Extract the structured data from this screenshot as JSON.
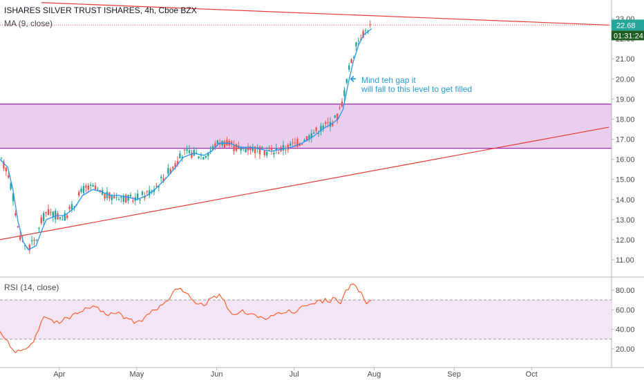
{
  "header": {
    "title": "ISHARES SILVER TRUST ISHARES, 4h, Cboe BZX",
    "ma_label": "MA (9, close)"
  },
  "rsi_panel": {
    "label": "RSI (14, close)"
  },
  "price_tags": {
    "last_price": "22.68",
    "countdown": "01:31:24"
  },
  "annotation": {
    "line1": "Mind teh gap it",
    "line2": "will fall to this level to get filled"
  },
  "colors": {
    "up": "#26a69a",
    "down": "#ef5350",
    "ma": "#2196f3",
    "trendline": "#e53935",
    "zone_fill": "#e1bee7",
    "zone_border": "#9c27b0",
    "rsi_line": "#ff5722",
    "rsi_band": "#f3e5f5",
    "price_tag_bg": "#26a69a",
    "countdown_bg": "#1b5e20"
  },
  "chart_data": [
    {
      "type": "candlestick",
      "title": "ISHARES SILVER TRUST ISHARES, 4h, Cboe BZX",
      "y_axis_ticks": [
        "11.00",
        "12.00",
        "13.00",
        "14.00",
        "15.00",
        "16.00",
        "17.00",
        "18.00",
        "19.00",
        "20.00",
        "21.00",
        "22.00",
        "23.00"
      ],
      "x_axis_ticks": [
        "Apr",
        "May",
        "Jun",
        "Jul",
        "Aug",
        "Sep",
        "Oct"
      ],
      "ylim": [
        10.5,
        23.5
      ],
      "close_path": [
        [
          "2020-03-09",
          16.0
        ],
        [
          "2020-03-12",
          15.4
        ],
        [
          "2020-03-14",
          14.2
        ],
        [
          "2020-03-16",
          12.5
        ],
        [
          "2020-03-18",
          11.8
        ],
        [
          "2020-03-20",
          11.6
        ],
        [
          "2020-03-23",
          12.0
        ],
        [
          "2020-03-25",
          12.9
        ],
        [
          "2020-03-27",
          13.4
        ],
        [
          "2020-03-31",
          13.2
        ],
        [
          "2020-04-03",
          13.1
        ],
        [
          "2020-04-07",
          13.8
        ],
        [
          "2020-04-10",
          14.5
        ],
        [
          "2020-04-14",
          14.6
        ],
        [
          "2020-04-17",
          14.3
        ],
        [
          "2020-04-21",
          14.1
        ],
        [
          "2020-04-24",
          14.2
        ],
        [
          "2020-04-28",
          14.0
        ],
        [
          "2020-05-01",
          14.1
        ],
        [
          "2020-05-05",
          14.3
        ],
        [
          "2020-05-08",
          14.6
        ],
        [
          "2020-05-12",
          15.2
        ],
        [
          "2020-05-16",
          15.8
        ],
        [
          "2020-05-19",
          16.3
        ],
        [
          "2020-05-23",
          16.3
        ],
        [
          "2020-05-27",
          16.2
        ],
        [
          "2020-05-30",
          16.5
        ],
        [
          "2020-06-02",
          16.9
        ],
        [
          "2020-06-06",
          16.7
        ],
        [
          "2020-06-10",
          16.5
        ],
        [
          "2020-06-14",
          16.6
        ],
        [
          "2020-06-18",
          16.4
        ],
        [
          "2020-06-22",
          16.4
        ],
        [
          "2020-06-26",
          16.5
        ],
        [
          "2020-06-30",
          16.7
        ],
        [
          "2020-07-04",
          16.9
        ],
        [
          "2020-07-08",
          17.3
        ],
        [
          "2020-07-12",
          17.6
        ],
        [
          "2020-07-16",
          17.9
        ],
        [
          "2020-07-18",
          18.2
        ],
        [
          "2020-07-20",
          19.0
        ],
        [
          "2020-07-22",
          20.4
        ],
        [
          "2020-07-24",
          21.2
        ],
        [
          "2020-07-26",
          22.0
        ],
        [
          "2020-07-28",
          22.3
        ],
        [
          "2020-07-31",
          22.68
        ]
      ],
      "ma_path": [
        [
          "2020-03-09",
          16.0
        ],
        [
          "2020-03-12",
          15.6
        ],
        [
          "2020-03-14",
          14.5
        ],
        [
          "2020-03-16",
          12.9
        ],
        [
          "2020-03-18",
          11.9
        ],
        [
          "2020-03-20",
          11.5
        ],
        [
          "2020-03-23",
          11.7
        ],
        [
          "2020-03-25",
          12.4
        ],
        [
          "2020-03-27",
          13.0
        ],
        [
          "2020-03-31",
          13.2
        ],
        [
          "2020-04-03",
          13.2
        ],
        [
          "2020-04-07",
          13.6
        ],
        [
          "2020-04-10",
          14.2
        ],
        [
          "2020-04-14",
          14.5
        ],
        [
          "2020-04-17",
          14.4
        ],
        [
          "2020-04-21",
          14.2
        ],
        [
          "2020-04-24",
          14.2
        ],
        [
          "2020-04-28",
          14.1
        ],
        [
          "2020-05-01",
          14.0
        ],
        [
          "2020-05-05",
          14.2
        ],
        [
          "2020-05-08",
          14.5
        ],
        [
          "2020-05-12",
          15.0
        ],
        [
          "2020-05-16",
          15.6
        ],
        [
          "2020-05-19",
          16.1
        ],
        [
          "2020-05-23",
          16.3
        ],
        [
          "2020-05-27",
          16.2
        ],
        [
          "2020-05-30",
          16.4
        ],
        [
          "2020-06-02",
          16.8
        ],
        [
          "2020-06-06",
          16.8
        ],
        [
          "2020-06-10",
          16.6
        ],
        [
          "2020-06-14",
          16.6
        ],
        [
          "2020-06-18",
          16.5
        ],
        [
          "2020-06-22",
          16.4
        ],
        [
          "2020-06-26",
          16.5
        ],
        [
          "2020-06-30",
          16.6
        ],
        [
          "2020-07-04",
          16.8
        ],
        [
          "2020-07-08",
          17.1
        ],
        [
          "2020-07-12",
          17.5
        ],
        [
          "2020-07-16",
          17.8
        ],
        [
          "2020-07-18",
          18.0
        ],
        [
          "2020-07-20",
          18.5
        ],
        [
          "2020-07-22",
          19.8
        ],
        [
          "2020-07-24",
          20.9
        ],
        [
          "2020-07-26",
          21.7
        ],
        [
          "2020-07-28",
          22.2
        ],
        [
          "2020-07-31",
          22.5
        ]
      ],
      "resistance_line": [
        [
          "2020-03-25",
          23.8
        ],
        [
          "2020-10-31",
          22.68
        ]
      ],
      "support_line": [
        [
          "2020-03-09",
          12.0
        ],
        [
          "2020-10-31",
          17.6
        ]
      ],
      "zone": {
        "from": 16.55,
        "to": 18.75
      },
      "last_price": 22.68,
      "gap_arrow_at": [
        "2020-07-23",
        20.0
      ]
    },
    {
      "type": "line",
      "title": "RSI (14, close)",
      "y_axis_ticks": [
        "20.00",
        "40.00",
        "60.00",
        "80.00"
      ],
      "ylim": [
        10,
        92
      ],
      "band": [
        30,
        70
      ],
      "values": [
        [
          "2020-03-09",
          38
        ],
        [
          "2020-03-11",
          30
        ],
        [
          "2020-03-13",
          22
        ],
        [
          "2020-03-15",
          16
        ],
        [
          "2020-03-17",
          18
        ],
        [
          "2020-03-19",
          20
        ],
        [
          "2020-03-21",
          25
        ],
        [
          "2020-03-23",
          35
        ],
        [
          "2020-03-25",
          48
        ],
        [
          "2020-03-27",
          52
        ],
        [
          "2020-03-29",
          50
        ],
        [
          "2020-04-01",
          46
        ],
        [
          "2020-04-04",
          52
        ],
        [
          "2020-04-08",
          56
        ],
        [
          "2020-04-11",
          62
        ],
        [
          "2020-04-14",
          64
        ],
        [
          "2020-04-17",
          58
        ],
        [
          "2020-04-20",
          54
        ],
        [
          "2020-04-23",
          56
        ],
        [
          "2020-04-27",
          52
        ],
        [
          "2020-04-30",
          46
        ],
        [
          "2020-05-03",
          48
        ],
        [
          "2020-05-06",
          56
        ],
        [
          "2020-05-09",
          60
        ],
        [
          "2020-05-12",
          68
        ],
        [
          "2020-05-15",
          78
        ],
        [
          "2020-05-18",
          82
        ],
        [
          "2020-05-21",
          76
        ],
        [
          "2020-05-24",
          66
        ],
        [
          "2020-05-27",
          64
        ],
        [
          "2020-05-30",
          72
        ],
        [
          "2020-06-02",
          76
        ],
        [
          "2020-06-05",
          62
        ],
        [
          "2020-06-08",
          55
        ],
        [
          "2020-06-11",
          60
        ],
        [
          "2020-06-14",
          56
        ],
        [
          "2020-06-17",
          52
        ],
        [
          "2020-06-20",
          50
        ],
        [
          "2020-06-23",
          54
        ],
        [
          "2020-06-26",
          56
        ],
        [
          "2020-06-29",
          60
        ],
        [
          "2020-07-02",
          58
        ],
        [
          "2020-07-05",
          64
        ],
        [
          "2020-07-08",
          66
        ],
        [
          "2020-07-11",
          70
        ],
        [
          "2020-07-14",
          68
        ],
        [
          "2020-07-17",
          72
        ],
        [
          "2020-07-19",
          66
        ],
        [
          "2020-07-21",
          80
        ],
        [
          "2020-07-23",
          86
        ],
        [
          "2020-07-25",
          84
        ],
        [
          "2020-07-27",
          78
        ],
        [
          "2020-07-29",
          66
        ],
        [
          "2020-07-31",
          70
        ]
      ]
    }
  ]
}
